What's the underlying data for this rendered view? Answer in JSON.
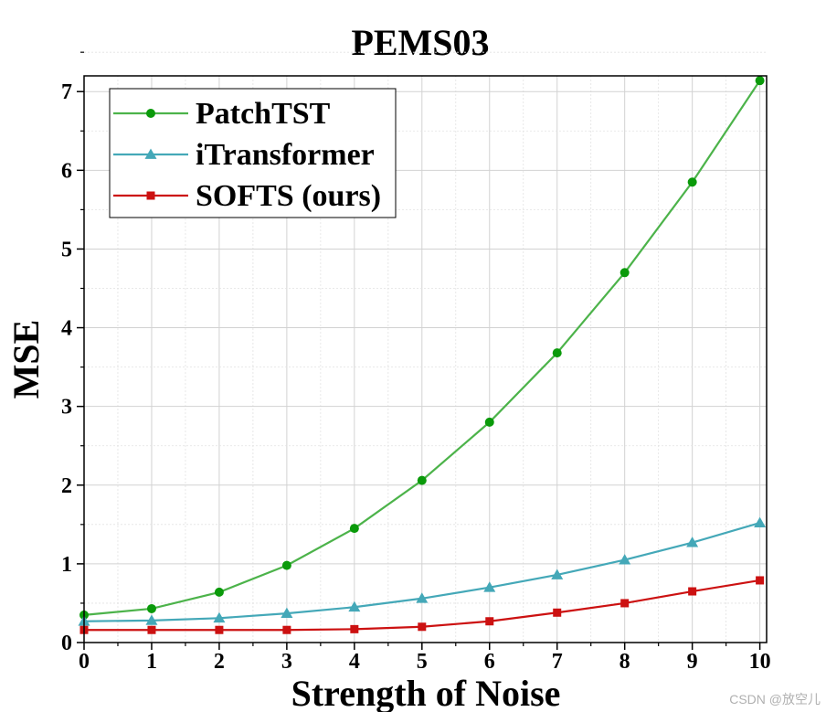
{
  "chart_data": {
    "type": "line",
    "title": "PEMS03",
    "xlabel": "Strength of Noise",
    "ylabel": "MSE",
    "x": [
      0,
      1,
      2,
      3,
      4,
      5,
      6,
      7,
      8,
      9,
      10
    ],
    "xlim": [
      0,
      10.1
    ],
    "ylim": [
      0,
      7.2
    ],
    "xticks": [
      "0",
      "1",
      "2",
      "3",
      "4",
      "5",
      "6",
      "7",
      "8",
      "9",
      "10"
    ],
    "yticks": [
      "0",
      "1",
      "2",
      "3",
      "4",
      "5",
      "6",
      "7"
    ],
    "grid": true,
    "legend_position": "top-left",
    "series": [
      {
        "name": "PatchTST",
        "marker": "circle",
        "color": "#4cb34a",
        "marker_color": "#0a9a0a",
        "values": [
          0.35,
          0.43,
          0.64,
          0.98,
          1.45,
          2.06,
          2.8,
          3.68,
          4.7,
          5.85,
          7.14
        ]
      },
      {
        "name": "iTransformer",
        "marker": "triangle",
        "color": "#44a8b8",
        "marker_color": "#44a8b8",
        "values": [
          0.27,
          0.28,
          0.31,
          0.37,
          0.45,
          0.56,
          0.7,
          0.86,
          1.05,
          1.27,
          1.52
        ]
      },
      {
        "name": "SOFTS (ours)",
        "marker": "square",
        "color": "#cc1111",
        "marker_color": "#cc1111",
        "values": [
          0.16,
          0.16,
          0.16,
          0.16,
          0.17,
          0.2,
          0.27,
          0.38,
          0.5,
          0.65,
          0.79
        ]
      }
    ]
  },
  "watermark": "CSDN @放空儿"
}
